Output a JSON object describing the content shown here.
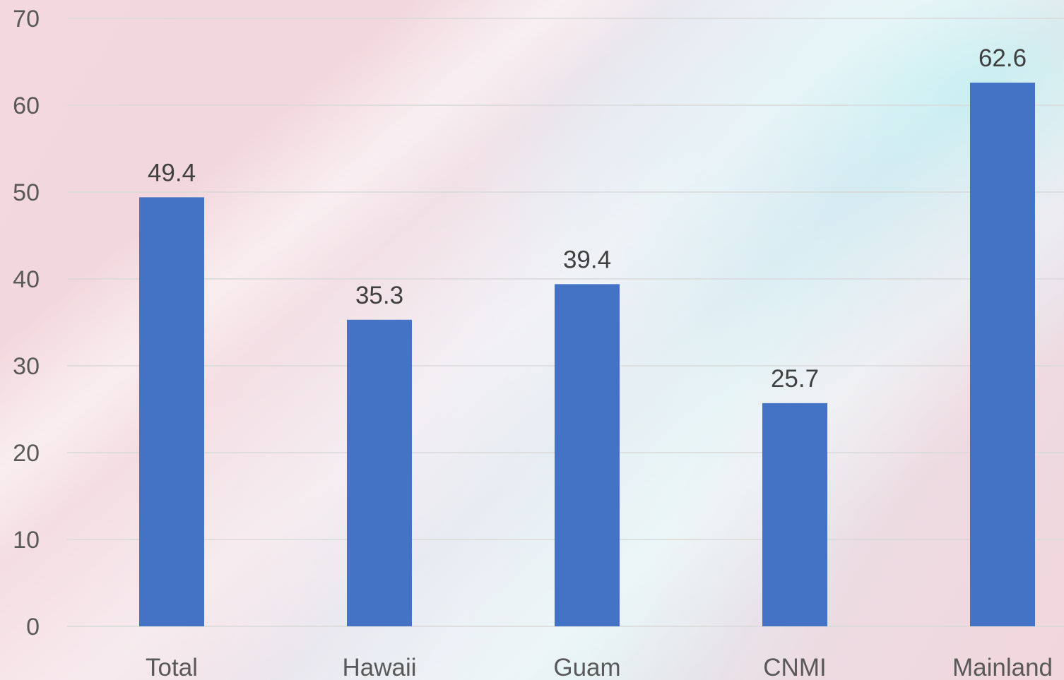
{
  "chart_data": {
    "type": "bar",
    "categories": [
      "Total",
      "Hawaii",
      "Guam",
      "CNMI",
      "Mainland"
    ],
    "values": [
      49.4,
      35.3,
      39.4,
      25.7,
      62.6
    ],
    "ylim": [
      0,
      70
    ],
    "yticks": [
      0,
      10,
      20,
      30,
      40,
      50,
      60,
      70
    ],
    "bar_color": "#4472C4",
    "grid": true,
    "data_labels": true
  }
}
